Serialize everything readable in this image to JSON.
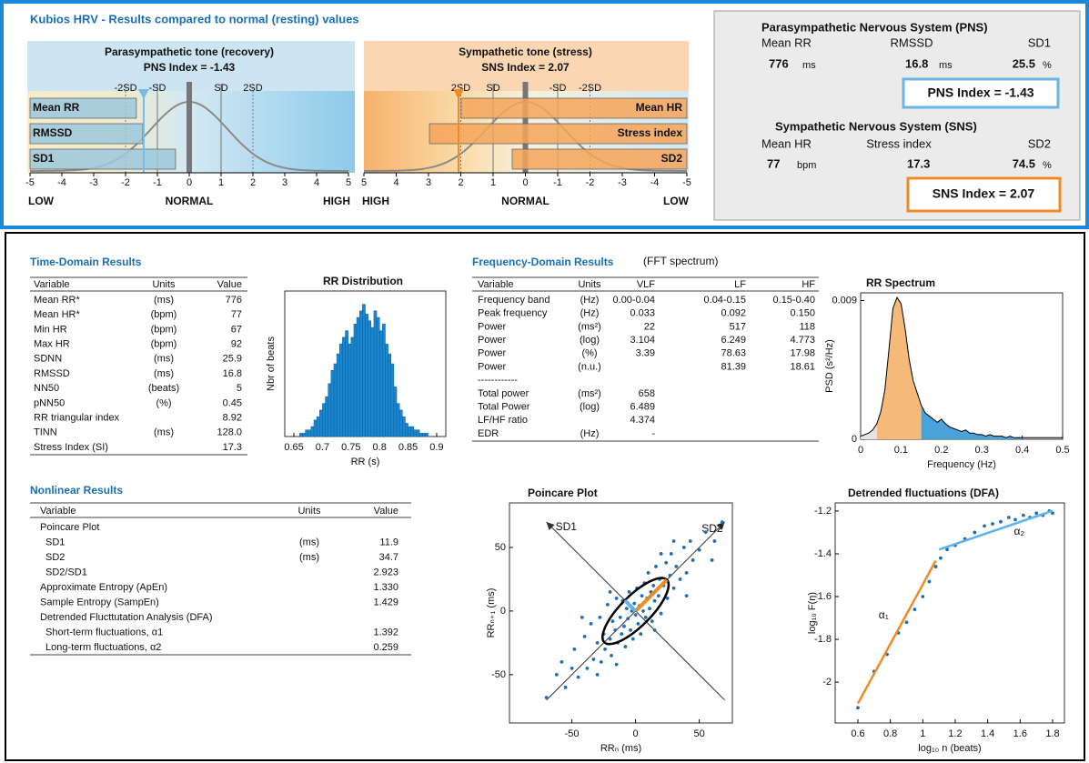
{
  "header": {
    "title": "Kubios HRV - Results compared to normal (resting) values"
  },
  "summary": {
    "pns": {
      "title": "Parasympathetic Nervous System (PNS)",
      "items": [
        {
          "label": "Mean RR",
          "value": "776",
          "unit": "ms"
        },
        {
          "label": "RMSSD",
          "value": "16.8",
          "unit": "ms"
        },
        {
          "label": "SD1",
          "value": "25.5",
          "unit": "%"
        }
      ]
    },
    "sns": {
      "title": "Sympathetic Nervous System (SNS)",
      "items": [
        {
          "label": "Mean HR",
          "value": "77",
          "unit": "bpm"
        },
        {
          "label": "Stress index",
          "value": "17.3"
        },
        {
          "label": "SD2",
          "value": "74.5",
          "unit": "%"
        }
      ]
    }
  },
  "time_domain": {
    "title": "Time-Domain Results",
    "columns": [
      "Variable",
      "Units",
      "Value"
    ],
    "rows": [
      [
        "Mean RR*",
        "(ms)",
        "776"
      ],
      [
        "Mean HR*",
        "(bpm)",
        "77"
      ],
      [
        "Min HR",
        "(bpm)",
        "67"
      ],
      [
        "Max HR",
        "(bpm)",
        "92"
      ],
      [
        "SDNN",
        "(ms)",
        "25.9"
      ],
      [
        "RMSSD",
        "(ms)",
        "16.8"
      ],
      [
        "NN50",
        "(beats)",
        "5"
      ],
      [
        "pNN50",
        "(%)",
        "0.45"
      ],
      [
        "RR triangular index",
        null,
        "8.92"
      ],
      [
        "TINN",
        "(ms)",
        "128.0"
      ],
      [
        "Stress Index (SI)",
        null,
        "17.3"
      ]
    ]
  },
  "frequency_domain": {
    "title": "Frequency-Domain Results",
    "subtitle": "(FFT spectrum)",
    "columns": [
      "Variable",
      "Units",
      "VLF",
      "LF",
      "HF"
    ],
    "rows": [
      [
        "Frequency band",
        "(Hz)",
        "0.00-0.04",
        "0.04-0.15",
        "0.15-0.40"
      ],
      [
        "Peak frequency",
        "(Hz)",
        "0.033",
        "0.092",
        "0.150"
      ],
      [
        "Power",
        "(ms²)",
        "22",
        "517",
        "118"
      ],
      [
        "Power",
        "(log)",
        "3.104",
        "6.249",
        "4.773"
      ],
      [
        "Power",
        "(%)",
        "3.39",
        "78.63",
        "17.98"
      ],
      [
        "Power",
        "(n.u.)",
        null,
        "81.39",
        "18.61"
      ],
      [
        "------------"
      ],
      [
        "Total power",
        "(ms²)",
        "658"
      ],
      [
        "Total Power",
        "(log)",
        "6.489"
      ],
      [
        "LF/HF ratio",
        null,
        "4.374"
      ],
      [
        "EDR",
        "(Hz)",
        "-"
      ]
    ]
  },
  "nonlinear": {
    "title": "Nonlinear Results",
    "columns": [
      "Variable",
      "Units",
      "Value"
    ],
    "rows": [
      [
        "Poincare Plot"
      ],
      [
        "SD1",
        "(ms)",
        "11.9"
      ],
      [
        "SD2",
        "(ms)",
        "34.7"
      ],
      [
        "SD2/SD1",
        null,
        "2.923"
      ],
      [
        "Approximate Entropy (ApEn)",
        null,
        "1.330"
      ],
      [
        "Sample Entropy (SampEn)",
        null,
        "1.429"
      ],
      [
        "Detrended Flucttutation Analysis (DFA)"
      ],
      [
        "Short-term fluctuations, α1",
        null,
        "1.392"
      ],
      [
        "Long-term fluctuations, α2",
        null,
        "0.259"
      ]
    ]
  },
  "chart_data": [
    {
      "type": "gauge",
      "title": "Parasympathetic tone (recovery)",
      "index_label": "PNS Index = -1.43",
      "index": -1.43,
      "categories": [
        "Mean RR",
        "RMSSD",
        "SD1"
      ],
      "values": [
        -1.66,
        -1.46,
        -0.43
      ],
      "color": "#9cc8dd",
      "marker_color": "#74bde8",
      "xlim": [
        -5,
        5
      ],
      "xticks": [
        -5,
        -4,
        -3,
        -2,
        -1,
        0,
        1,
        2,
        3,
        4,
        5
      ],
      "sd_lines": [
        {
          "value": -2,
          "label": "-2SD"
        },
        {
          "value": -1,
          "label": "-SD"
        },
        {
          "value": 1,
          "label": "SD"
        },
        {
          "value": 2,
          "label": "2SD"
        }
      ],
      "scale_labels": [
        {
          "text": "LOW",
          "color": "#f0a050"
        },
        {
          "text": "NORMAL",
          "color": "#8cc8ea"
        },
        {
          "text": "HIGH",
          "color": "#2a8ad0"
        }
      ]
    },
    {
      "type": "gauge",
      "title": "Sympathetic tone (stress)",
      "index_label": "SNS Index = 2.07",
      "index": 2.07,
      "categories": [
        "Mean HR",
        "Stress index",
        "SD2"
      ],
      "values": [
        1.99,
        2.97,
        0.41
      ],
      "color": "#f5a55a",
      "marker_color": "#f08a24",
      "xlim": [
        5,
        -5
      ],
      "xticks": [
        5,
        4,
        3,
        2,
        1,
        0,
        -1,
        -2,
        -3,
        -4,
        -5
      ],
      "sd_lines": [
        {
          "value": 2,
          "label": "2SD"
        },
        {
          "value": 1,
          "label": "SD"
        },
        {
          "value": -1,
          "label": "-SD"
        },
        {
          "value": -2,
          "label": "-2SD"
        }
      ],
      "scale_labels": [
        {
          "text": "HIGH",
          "color": "#f0a050"
        },
        {
          "text": "NORMAL",
          "color": "#8cc8ea"
        },
        {
          "text": "LOW",
          "color": "#2a8ad0"
        }
      ]
    },
    {
      "type": "histogram",
      "title": "RR Distribution",
      "xlabel": "RR (s)",
      "ylabel": "Nbr of beats",
      "color": "#1a86d0",
      "bins": [
        0.66,
        0.665,
        0.67,
        0.675,
        0.68,
        0.685,
        0.69,
        0.695,
        0.7,
        0.705,
        0.71,
        0.715,
        0.72,
        0.725,
        0.73,
        0.735,
        0.74,
        0.745,
        0.75,
        0.755,
        0.76,
        0.765,
        0.77,
        0.775,
        0.78,
        0.785,
        0.79,
        0.795,
        0.8,
        0.805,
        0.81,
        0.815,
        0.82,
        0.825,
        0.83,
        0.835,
        0.84,
        0.845,
        0.85,
        0.855,
        0.86,
        0.865,
        0.87,
        0.875,
        0.88,
        0.885
      ],
      "values": [
        1,
        1,
        2,
        2,
        3,
        5,
        6,
        8,
        10,
        12,
        16,
        20,
        22,
        25,
        28,
        30,
        32,
        28,
        30,
        34,
        36,
        38,
        40,
        37,
        35,
        33,
        38,
        36,
        32,
        34,
        28,
        25,
        22,
        15,
        10,
        8,
        6,
        4,
        3,
        3,
        2,
        2,
        1,
        1,
        1
      ],
      "xlim": [
        0.634,
        0.916
      ],
      "xticks": [
        0.65,
        0.7,
        0.75,
        0.8,
        0.85,
        0.9
      ],
      "ylim": [
        0,
        44
      ]
    },
    {
      "type": "area",
      "title": "RR Spectrum",
      "xlabel": "Frequency (Hz)",
      "ylabel": "PSD (s²/Hz)",
      "x": [
        0,
        0.01,
        0.02,
        0.03,
        0.04,
        0.05,
        0.06,
        0.07,
        0.08,
        0.09,
        0.1,
        0.11,
        0.12,
        0.13,
        0.14,
        0.15,
        0.16,
        0.17,
        0.18,
        0.19,
        0.2,
        0.21,
        0.22,
        0.23,
        0.24,
        0.25,
        0.26,
        0.27,
        0.28,
        0.29,
        0.3,
        0.31,
        0.32,
        0.33,
        0.34,
        0.35,
        0.36,
        0.37,
        0.38,
        0.39,
        0.4,
        0.41,
        0.42,
        0.43,
        0.44,
        0.45,
        0.46,
        0.47,
        0.48,
        0.49,
        0.5
      ],
      "values": [
        0.0002,
        0.0003,
        0.0004,
        0.0006,
        0.001,
        0.0018,
        0.0032,
        0.0058,
        0.0085,
        0.0092,
        0.0088,
        0.0072,
        0.0052,
        0.0038,
        0.003,
        0.0022,
        0.0017,
        0.0015,
        0.0013,
        0.0011,
        0.0013,
        0.001,
        0.0008,
        0.0007,
        0.0006,
        0.0005,
        0.0006,
        0.0004,
        0.0004,
        0.0003,
        0.0003,
        0.0002,
        0.0003,
        0.0002,
        0.0002,
        0.0002,
        0.0001,
        0.0002,
        0.0001,
        0.0001,
        0.0001,
        0.0001,
        0.0001,
        0.0001,
        0.0001,
        0.0001,
        0.0001,
        0.0001,
        0.0001,
        0.0001,
        0.0001
      ],
      "bands": [
        {
          "from": 0,
          "to": 0.04,
          "color": "#e4e4e4"
        },
        {
          "from": 0.04,
          "to": 0.15,
          "color": "#f5b97a"
        },
        {
          "from": 0.15,
          "to": 0.4,
          "color": "#4aa3d8"
        }
      ],
      "xlim": [
        0,
        0.5
      ],
      "xticks": [
        0,
        0.1,
        0.2,
        0.3,
        0.4,
        0.5
      ],
      "ylim": [
        0,
        0.0095
      ],
      "yticks": [
        0,
        0.009
      ]
    },
    {
      "type": "scatter",
      "title": "Poincare Plot",
      "xlabel": "RRₙ (ms)",
      "ylabel": "RRₙ₊₁ (ms)",
      "color": "#1f6fb2",
      "x": [
        -70,
        -62,
        -55,
        -48,
        -45,
        -40,
        -38,
        -35,
        -33,
        -30,
        -28,
        -27,
        -25,
        -24,
        -22,
        -20,
        -19,
        -18,
        -16,
        -15,
        -14,
        -12,
        -11,
        -10,
        -9,
        -8,
        -7,
        -6,
        -5,
        -4,
        -3,
        -2,
        -1,
        0,
        1,
        2,
        3,
        4,
        5,
        6,
        7,
        8,
        9,
        10,
        11,
        12,
        13,
        14,
        15,
        16,
        18,
        19,
        20,
        22,
        24,
        25,
        27,
        28,
        30,
        32,
        35,
        38,
        40,
        43,
        45,
        50,
        55,
        62,
        68,
        -42,
        -50,
        -30,
        -20,
        15,
        30,
        40,
        20,
        -15,
        60,
        -58
      ],
      "values": [
        -68,
        -50,
        -60,
        -30,
        -52,
        -20,
        -45,
        -10,
        -38,
        -25,
        -5,
        -40,
        -18,
        -30,
        5,
        -22,
        -35,
        -8,
        -15,
        10,
        -25,
        -5,
        -18,
        8,
        -12,
        -28,
        2,
        -6,
        15,
        -15,
        0,
        -22,
        6,
        -3,
        18,
        -10,
        4,
        -18,
        12,
        0,
        22,
        -5,
        10,
        30,
        2,
        15,
        -8,
        20,
        8,
        35,
        12,
        25,
        -2,
        20,
        38,
        10,
        28,
        45,
        18,
        35,
        25,
        50,
        30,
        55,
        40,
        48,
        62,
        55,
        70,
        -5,
        -45,
        -50,
        15,
        -15,
        55,
        12,
        45,
        -42,
        40,
        -40
      ],
      "sd1": 11.9,
      "sd2": 34.7,
      "annotations": [
        {
          "text": "SD1",
          "color": "#5fb3e8"
        },
        {
          "text": "SD2",
          "color": "#f08a24"
        }
      ],
      "xlim": [
        -99,
        76
      ],
      "xticks": [
        -50,
        0,
        50
      ],
      "ylim": [
        -88,
        85
      ],
      "yticks": [
        -50,
        0,
        50
      ]
    },
    {
      "type": "scatter",
      "title": "Detrended fluctuations (DFA)",
      "xlabel": "log₁₀ n (beats)",
      "ylabel": "log₁₀ F(n)",
      "color": "#1f6fb2",
      "x": [
        0.6,
        0.7,
        0.78,
        0.85,
        0.9,
        0.95,
        1.0,
        1.04,
        1.08,
        1.11,
        1.15,
        1.2,
        1.26,
        1.32,
        1.38,
        1.43,
        1.48,
        1.53,
        1.57,
        1.62,
        1.66,
        1.7,
        1.74,
        1.78,
        1.8
      ],
      "values": [
        -2.12,
        -1.95,
        -1.87,
        -1.77,
        -1.72,
        -1.66,
        -1.6,
        -1.53,
        -1.46,
        -1.42,
        -1.38,
        -1.36,
        -1.33,
        -1.3,
        -1.27,
        -1.26,
        -1.25,
        -1.23,
        -1.24,
        -1.22,
        -1.23,
        -1.21,
        -1.22,
        -1.2,
        -1.21
      ],
      "fits": [
        {
          "color": "#f08a24",
          "x": [
            0.6,
            1.08
          ],
          "values": [
            -2.1,
            -1.432
          ]
        },
        {
          "color": "#5fb3e8",
          "x": [
            1.1,
            1.8
          ],
          "values": [
            -1.38,
            -1.199
          ]
        }
      ],
      "annotations": [
        {
          "text": "α₁"
        },
        {
          "text": "α₂"
        }
      ],
      "xlim": [
        0.46,
        1.873
      ],
      "xticks": [
        0.6,
        0.8,
        1,
        1.2,
        1.4,
        1.6,
        1.8
      ],
      "ylim": [
        -2.191,
        -1.162
      ],
      "yticks": [
        -2,
        -1.8,
        -1.6,
        -1.4,
        -1.2
      ]
    }
  ]
}
